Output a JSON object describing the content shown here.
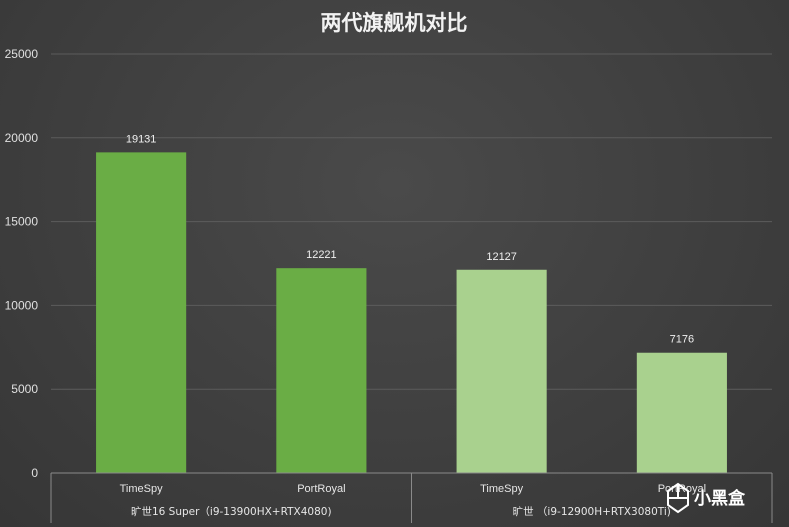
{
  "chart_data": {
    "type": "bar",
    "title": "两代旗舰机对比",
    "xlabel": "",
    "ylabel": "",
    "ylim": [
      0,
      25000
    ],
    "yticks": [
      0,
      5000,
      10000,
      15000,
      20000,
      25000
    ],
    "grid": true,
    "groups": [
      {
        "label": "旷世16 Super（i9-13900HX+RTX4080)",
        "color": "#6aad45",
        "bars": [
          {
            "category": "TimeSpy",
            "value": 19131
          },
          {
            "category": "PortRoyal",
            "value": 12221
          }
        ]
      },
      {
        "label": "旷世 （i9-12900H+RTX3080Ti)",
        "color": "#a9d18e",
        "bars": [
          {
            "category": "TimeSpy",
            "value": 12127
          },
          {
            "category": "PortRoyal",
            "value": 7176
          }
        ]
      }
    ]
  },
  "watermark": {
    "text": "小黑盒",
    "icon": "xiaoheihe-logo-icon"
  }
}
